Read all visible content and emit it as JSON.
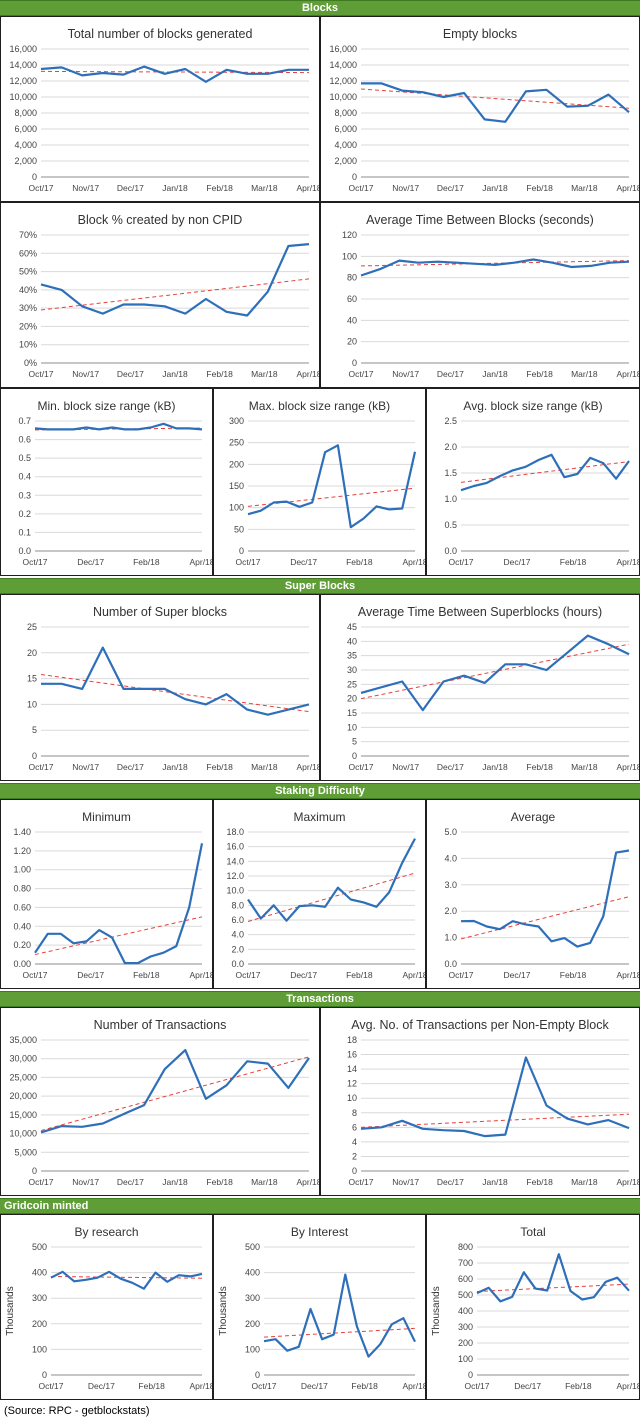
{
  "sections": [
    {
      "title": "Blocks",
      "align": "center"
    },
    {
      "title": "Super Blocks",
      "align": "center"
    },
    {
      "title": "Staking Difficulty",
      "align": "center"
    },
    {
      "title": "Transactions",
      "align": "center"
    },
    {
      "title": "Gridcoin minted",
      "align": "left"
    }
  ],
  "source": "(Source: RPC - getblockstats)",
  "colors": {
    "line": "#2e6fba",
    "trend": "#e8413a",
    "band": "#5f9e36",
    "grid": "#d9d9d9"
  },
  "chart_data": [
    {
      "id": "total-blocks",
      "type": "line",
      "title": "Total number of blocks generated",
      "yticks": [
        "0",
        "2,000",
        "4,000",
        "6,000",
        "8,000",
        "10,000",
        "12,000",
        "14,000",
        "16,000"
      ],
      "ylim": [
        0,
        16000
      ],
      "xticks": [
        "Oct/17",
        "Nov/17",
        "Dec/17",
        "Jan/18",
        "Feb/18",
        "Mar/18",
        "Apr/18"
      ],
      "values": [
        13500,
        13700,
        12700,
        13000,
        12800,
        13800,
        12900,
        13500,
        11900,
        13400,
        12900,
        12900,
        13400,
        13400
      ],
      "trend": [
        13200,
        13050
      ]
    },
    {
      "id": "empty-blocks",
      "type": "line",
      "title": "Empty blocks",
      "yticks": [
        "0",
        "2,000",
        "4,000",
        "6,000",
        "8,000",
        "10,000",
        "12,000",
        "14,000",
        "16,000"
      ],
      "ylim": [
        0,
        16000
      ],
      "xticks": [
        "Oct/17",
        "Nov/17",
        "Dec/17",
        "Jan/18",
        "Feb/18",
        "Mar/18",
        "Apr/18"
      ],
      "values": [
        11700,
        11700,
        10800,
        10600,
        10000,
        10500,
        7200,
        6900,
        10700,
        10900,
        8800,
        8900,
        10300,
        8100
      ],
      "trend": [
        11000,
        8600
      ]
    },
    {
      "id": "non-cpid-pct",
      "type": "line",
      "title": "Block % created by non CPID",
      "yticks": [
        "0%",
        "10%",
        "20%",
        "30%",
        "40%",
        "50%",
        "60%",
        "70%"
      ],
      "ylim": [
        0,
        70
      ],
      "xticks": [
        "Oct/17",
        "Nov/17",
        "Dec/17",
        "Jan/18",
        "Feb/18",
        "Mar/18",
        "Apr/18"
      ],
      "values": [
        43,
        40,
        31,
        27,
        32,
        32,
        31,
        27,
        35,
        28,
        26,
        39,
        64,
        65
      ],
      "trend": [
        29,
        46
      ]
    },
    {
      "id": "avg-time-blocks",
      "type": "line",
      "title": "Average Time Between Blocks (seconds)",
      "yticks": [
        "0",
        "20",
        "40",
        "60",
        "80",
        "100",
        "120"
      ],
      "ylim": [
        0,
        120
      ],
      "xticks": [
        "Oct/17",
        "Nov/17",
        "Dec/17",
        "Jan/18",
        "Feb/18",
        "Mar/18",
        "Apr/18"
      ],
      "values": [
        82,
        88,
        96,
        94,
        95,
        94,
        93,
        92,
        94,
        97,
        94,
        90,
        91,
        94,
        95
      ],
      "trend": [
        91,
        96
      ]
    },
    {
      "id": "min-block-size",
      "type": "line",
      "title": "Min. block size range (kB)",
      "yticks": [
        "0.0",
        "0.1",
        "0.2",
        "0.3",
        "0.4",
        "0.5",
        "0.6",
        "0.7"
      ],
      "ylim": [
        0,
        0.7
      ],
      "xticks": [
        "Oct/17",
        "Dec/17",
        "Feb/18",
        "Apr/18"
      ],
      "values": [
        0.66,
        0.655,
        0.655,
        0.655,
        0.665,
        0.655,
        0.665,
        0.655,
        0.655,
        0.665,
        0.685,
        0.66,
        0.66,
        0.655
      ],
      "trend": [
        0.652,
        0.662
      ]
    },
    {
      "id": "max-block-size",
      "type": "line",
      "title": "Max. block size range (kB)",
      "yticks": [
        "0",
        "50",
        "100",
        "150",
        "200",
        "250",
        "300"
      ],
      "ylim": [
        0,
        300
      ],
      "xticks": [
        "Oct/17",
        "Dec/17",
        "Feb/18",
        "Apr/18"
      ],
      "values": [
        85,
        93,
        112,
        114,
        102,
        112,
        228,
        244,
        55,
        75,
        103,
        96,
        98,
        229
      ],
      "trend": [
        103,
        145
      ]
    },
    {
      "id": "avg-block-size",
      "type": "line",
      "title": "Avg. block size range (kB)",
      "yticks": [
        "0.0",
        "0.5",
        "1.0",
        "1.5",
        "2.0",
        "2.5"
      ],
      "ylim": [
        0,
        2.5
      ],
      "xticks": [
        "Oct/17",
        "Dec/17",
        "Feb/18",
        "Apr/18"
      ],
      "values": [
        1.17,
        1.25,
        1.31,
        1.44,
        1.55,
        1.62,
        1.75,
        1.85,
        1.42,
        1.48,
        1.79,
        1.69,
        1.39,
        1.73
      ],
      "trend": [
        1.32,
        1.72
      ]
    },
    {
      "id": "num-superblocks",
      "type": "line",
      "title": "Number of Super blocks",
      "yticks": [
        "0",
        "5",
        "10",
        "15",
        "20",
        "25"
      ],
      "ylim": [
        0,
        25
      ],
      "xticks": [
        "Oct/17",
        "Nov/17",
        "Dec/17",
        "Jan/18",
        "Feb/18",
        "Mar/18",
        "Apr/18"
      ],
      "values": [
        14,
        14,
        13,
        21,
        13,
        13,
        13,
        11,
        10,
        12,
        9,
        8,
        9,
        10
      ],
      "trend": [
        15.8,
        8.6
      ]
    },
    {
      "id": "avg-time-superblocks",
      "type": "line",
      "title": "Average Time Between Superblocks (hours)",
      "yticks": [
        "0",
        "5",
        "10",
        "15",
        "20",
        "25",
        "30",
        "35",
        "40",
        "45"
      ],
      "ylim": [
        0,
        45
      ],
      "xticks": [
        "Oct/17",
        "Nov/17",
        "Dec/17",
        "Jan/18",
        "Feb/18",
        "Mar/18",
        "Apr/18"
      ],
      "values": [
        22,
        24,
        26,
        16,
        26,
        28,
        25.5,
        32,
        32,
        30,
        36,
        42,
        39,
        35.5
      ],
      "trend": [
        20,
        39
      ]
    },
    {
      "id": "staking-min",
      "type": "line",
      "title": "Minimum",
      "yticks": [
        "0.00",
        "0.20",
        "0.40",
        "0.60",
        "0.80",
        "1.00",
        "1.20",
        "1.40"
      ],
      "ylim": [
        0,
        1.4
      ],
      "xticks": [
        "Oct/17",
        "Dec/17",
        "Feb/18",
        "Apr/18"
      ],
      "values": [
        0.12,
        0.32,
        0.32,
        0.22,
        0.24,
        0.36,
        0.28,
        0.01,
        0.01,
        0.08,
        0.12,
        0.19,
        0.6,
        1.28
      ],
      "trend": [
        0.1,
        0.5
      ]
    },
    {
      "id": "staking-max",
      "type": "line",
      "title": "Maximum",
      "yticks": [
        "0.0",
        "2.0",
        "4.0",
        "6.0",
        "8.0",
        "10.0",
        "12.0",
        "14.0",
        "16.0",
        "18.0"
      ],
      "ylim": [
        0,
        18
      ],
      "xticks": [
        "Oct/17",
        "Dec/17",
        "Feb/18",
        "Apr/18"
      ],
      "values": [
        8.8,
        6.2,
        8.0,
        5.9,
        7.9,
        8.0,
        7.8,
        10.4,
        8.8,
        8.4,
        7.8,
        9.8,
        13.8,
        17.1
      ],
      "trend": [
        5.8,
        12.4
      ]
    },
    {
      "id": "staking-avg",
      "type": "line",
      "title": "Average",
      "yticks": [
        "0.0",
        "1.0",
        "2.0",
        "3.0",
        "4.0",
        "5.0"
      ],
      "ylim": [
        0,
        5
      ],
      "xticks": [
        "Oct/17",
        "Dec/17",
        "Feb/18",
        "Apr/18"
      ],
      "values": [
        1.62,
        1.63,
        1.42,
        1.32,
        1.62,
        1.5,
        1.42,
        0.86,
        0.98,
        0.66,
        0.8,
        1.8,
        4.22,
        4.3
      ],
      "trend": [
        0.95,
        2.55
      ]
    },
    {
      "id": "num-transactions",
      "type": "line",
      "title": "Number of Transactions",
      "yticks": [
        "0",
        "5,000",
        "10,000",
        "15,000",
        "20,000",
        "25,000",
        "30,000",
        "35,000"
      ],
      "ylim": [
        0,
        35000
      ],
      "xticks": [
        "Oct/17",
        "Nov/17",
        "Dec/17",
        "Jan/18",
        "Feb/18",
        "Mar/18",
        "Apr/18"
      ],
      "values": [
        10300,
        12000,
        11800,
        12700,
        15200,
        17600,
        27200,
        32300,
        19300,
        22900,
        29300,
        28700,
        22200,
        30200
      ],
      "trend": [
        10800,
        30500
      ]
    },
    {
      "id": "avg-tx-per-block",
      "type": "line",
      "title": "Avg. No. of Transactions per Non-Empty Block",
      "yticks": [
        "0",
        "2",
        "4",
        "6",
        "8",
        "10",
        "12",
        "14",
        "16",
        "18"
      ],
      "ylim": [
        0,
        18
      ],
      "xticks": [
        "Oct/17",
        "Nov/17",
        "Dec/17",
        "Jan/18",
        "Feb/18",
        "Mar/18",
        "Apr/18"
      ],
      "values": [
        5.8,
        6.0,
        6.9,
        5.8,
        5.6,
        5.5,
        4.8,
        5.0,
        15.6,
        9.0,
        7.2,
        6.4,
        7.0,
        5.9
      ],
      "trend": [
        6.0,
        7.8
      ]
    },
    {
      "id": "by-research",
      "type": "line",
      "title": "By research",
      "ylabel": "Thousands",
      "yticks": [
        "0",
        "100",
        "200",
        "300",
        "400",
        "500"
      ],
      "ylim": [
        0,
        500
      ],
      "xticks": [
        "Oct/17",
        "Dec/17",
        "Feb/18",
        "Apr/18"
      ],
      "values": [
        380,
        403,
        366,
        372,
        380,
        403,
        376,
        360,
        337,
        400,
        364,
        390,
        385,
        395
      ],
      "trend": [
        385,
        378
      ]
    },
    {
      "id": "by-interest",
      "type": "line",
      "title": "By Interest",
      "ylabel": "Thousands",
      "yticks": [
        "0",
        "100",
        "200",
        "300",
        "400",
        "500"
      ],
      "ylim": [
        0,
        500
      ],
      "xticks": [
        "Oct/17",
        "Dec/17",
        "Feb/18",
        "Apr/18"
      ],
      "values": [
        132,
        140,
        95,
        110,
        258,
        140,
        158,
        392,
        190,
        72,
        120,
        198,
        222,
        130
      ],
      "trend": [
        148,
        182
      ]
    },
    {
      "id": "total-minted",
      "type": "line",
      "title": "Total",
      "ylabel": "Thousands",
      "yticks": [
        "0",
        "100",
        "200",
        "300",
        "400",
        "500",
        "600",
        "700",
        "800"
      ],
      "ylim": [
        0,
        800
      ],
      "xticks": [
        "Oct/17",
        "Dec/17",
        "Feb/18",
        "Apr/18"
      ],
      "values": [
        512,
        545,
        460,
        488,
        642,
        540,
        528,
        755,
        525,
        472,
        486,
        582,
        608,
        527
      ],
      "trend": [
        522,
        568
      ]
    }
  ]
}
